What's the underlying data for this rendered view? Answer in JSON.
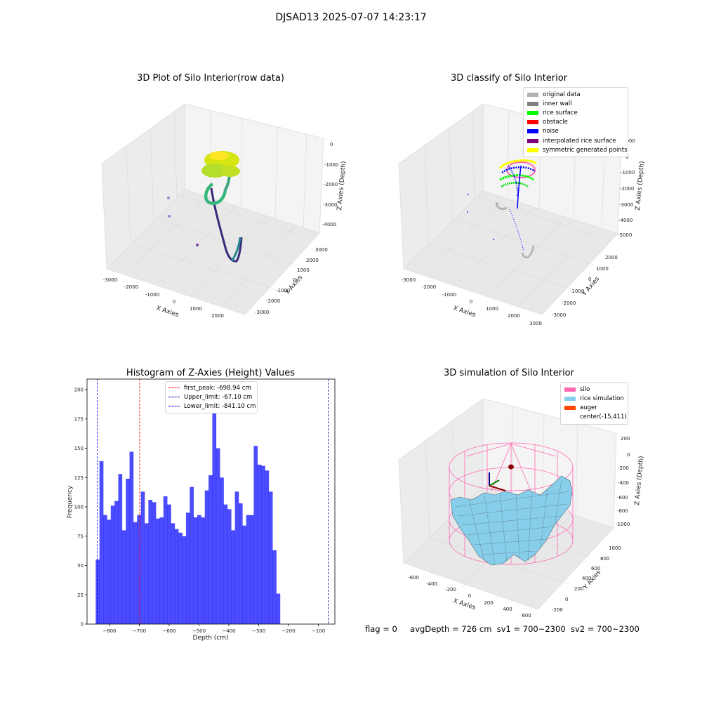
{
  "suptitle": "DJSAD13 2025-07-07 14:23:17",
  "footer": {
    "flag": "flag = 0",
    "avg": "avgDepth = 726 cm",
    "sv1": "sv1 = 700~2300",
    "sv2": "sv2 = 700~2300"
  },
  "panels": {
    "raw": {
      "title": "3D Plot of Silo Interior(row data)",
      "xlabel": "X Axies",
      "ylabel": "Y Axies",
      "zlabel": "Z Axies (Depth)",
      "xticks": [
        "-3000",
        "-2000",
        "-1000",
        "0",
        "1000",
        "2000"
      ],
      "yticks": [
        "3000",
        "2000",
        "1000",
        "0",
        "-1000",
        "-2000",
        "-3000"
      ],
      "zticks": [
        "0",
        "-1000",
        "-2000",
        "-3000",
        "-4000"
      ]
    },
    "classify": {
      "title": "3D classify of Silo Interior",
      "xlabel": "X Axies",
      "ylabel": "Y Axies",
      "zlabel": "Z Axies (Depth)",
      "xticks": [
        "-3000",
        "-2000",
        "-1000",
        "0",
        "1000",
        "2000",
        "3000"
      ],
      "yticks": [
        "2000",
        "1000",
        "0",
        "-1000",
        "-2000",
        "-3000"
      ],
      "zticks": [
        "1000",
        "0",
        "-1000",
        "-2000",
        "-3000",
        "-4000",
        "-5000"
      ],
      "legend": [
        {
          "label": "original data",
          "color": "#b3b3b3"
        },
        {
          "label": "inner wall",
          "color": "#808080"
        },
        {
          "label": "rice surface",
          "color": "#00ff00"
        },
        {
          "label": "obstacle",
          "color": "#ff0000"
        },
        {
          "label": "noise",
          "color": "#0000ff"
        },
        {
          "label": "interpolated rice surface",
          "color": "#800080"
        },
        {
          "label": "symmetric generated points",
          "color": "#ffff00"
        }
      ]
    },
    "simulation": {
      "title": "3D simulation of Silo Interior",
      "xlabel": "X Axies",
      "ylabel": "Y Axies",
      "zlabel": "Z Axies (Depth)",
      "xticks": [
        "-600",
        "-400",
        "-200",
        "0",
        "200",
        "400",
        "600"
      ],
      "yticks": [
        "1000",
        "800",
        "600",
        "400",
        "200",
        "0",
        "-200"
      ],
      "zticks": [
        "200",
        "0",
        "-200",
        "-400",
        "-600",
        "-800",
        "-1000"
      ],
      "legend": [
        {
          "label": "silo",
          "color": "#ff69b4"
        },
        {
          "label": "rice simulation",
          "color": "#87ceeb"
        },
        {
          "label": "auger",
          "color": "#ff4500"
        },
        {
          "label": "center(-15,411)",
          "color": "none"
        }
      ]
    }
  },
  "chart_data": {
    "type": "bar",
    "title": "Histogram of Z-Axies (Height) Values",
    "xlabel": "Depth (cm)",
    "ylabel": "Frequency",
    "xlim": [
      -875,
      -45
    ],
    "ylim": [
      0,
      209
    ],
    "bar_color": "#0000ff",
    "xticks": [
      -800,
      -700,
      -600,
      -500,
      -400,
      -300,
      -200,
      -100
    ],
    "yticks": [
      0,
      25,
      50,
      75,
      100,
      125,
      150,
      175,
      200
    ],
    "bin_start": -846,
    "bin_width": 12.6,
    "values": [
      55,
      139,
      93,
      89,
      101,
      105,
      128,
      80,
      124,
      147,
      87,
      93,
      113,
      86,
      106,
      104,
      90,
      91,
      109,
      102,
      86,
      81,
      78,
      75,
      95,
      117,
      91,
      93,
      91,
      114,
      127,
      198,
      150,
      125,
      102,
      98,
      80,
      113,
      103,
      84,
      93,
      93,
      152,
      136,
      135,
      131,
      113,
      63,
      26
    ],
    "reference_lines": [
      {
        "label": "first_peak: -698.94 cm",
        "value": -698.94,
        "color": "#ff0000"
      },
      {
        "label": "Upper_limit: -67.10 cm",
        "value": -67.1,
        "color": "#00008b"
      },
      {
        "label": "Lower_limit: -841.10 cm",
        "value": -841.1,
        "color": "#0000ff"
      }
    ]
  }
}
